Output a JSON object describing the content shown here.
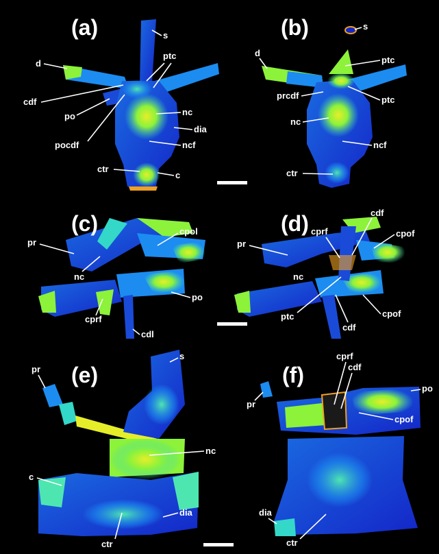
{
  "figure": {
    "panels": [
      {
        "letter": "(a)",
        "labels": {
          "s": "s",
          "d": "d",
          "ptc": "ptc",
          "cdf": "cdf",
          "po": "po",
          "pocdf": "pocdf",
          "nc": "nc",
          "dia": "dia",
          "ncf": "ncf",
          "ctr": "ctr",
          "c": "c"
        }
      },
      {
        "letter": "(b)",
        "labels": {
          "s": "s",
          "d": "d",
          "ptc_top": "ptc",
          "prcdf": "prcdf",
          "ptc_right": "ptc",
          "nc": "nc",
          "ncf": "ncf",
          "ctr": "ctr"
        }
      },
      {
        "letter": "(c)",
        "labels": {
          "pr": "pr",
          "cpol": "cpol",
          "nc": "nc",
          "po": "po",
          "cprf": "cprf",
          "cdl": "cdl"
        }
      },
      {
        "letter": "(d)",
        "labels": {
          "cdf_top": "cdf",
          "cprf": "cprf",
          "cpof_top": "cpof",
          "pr": "pr",
          "nc": "nc",
          "ptc": "ptc",
          "cdf_bottom": "cdf",
          "cpof_bottom": "cpof"
        }
      },
      {
        "letter": "(e)",
        "labels": {
          "s": "s",
          "pr": "pr",
          "nc": "nc",
          "c": "c",
          "dia": "dia",
          "ctr": "ctr"
        }
      },
      {
        "letter": "(f)",
        "labels": {
          "cprf": "cprf",
          "cdf": "cdf",
          "po": "po",
          "pr": "pr",
          "cpof": "cpof",
          "dia": "dia",
          "ctr": "ctr"
        }
      }
    ],
    "colors": {
      "background": "#000000",
      "label": "#ffffff",
      "specimen_deep": "#1426c8",
      "specimen_mid": "#1c8cf0",
      "specimen_cyan": "#33d8c8",
      "specimen_green": "#8cf23a",
      "specimen_yellow": "#e6ee2a",
      "specimen_orange": "#f0a020"
    }
  }
}
